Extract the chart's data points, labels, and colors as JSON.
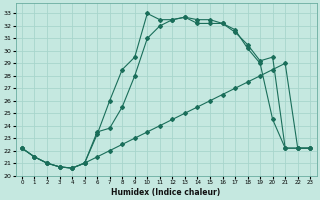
{
  "title": "",
  "xlabel": "Humidex (Indice chaleur)",
  "bg_color": "#c5e8e0",
  "grid_color": "#a8d5cc",
  "line_color": "#1a6e5a",
  "xlim": [
    -0.5,
    23.5
  ],
  "ylim": [
    20.0,
    33.8
  ],
  "xticks": [
    0,
    1,
    2,
    3,
    4,
    5,
    6,
    7,
    8,
    9,
    10,
    11,
    12,
    13,
    14,
    15,
    16,
    17,
    18,
    19,
    20,
    21,
    22,
    23
  ],
  "yticks": [
    20,
    21,
    22,
    23,
    24,
    25,
    26,
    27,
    28,
    29,
    30,
    31,
    32,
    33
  ],
  "line1_x": [
    0,
    1,
    2,
    3,
    4,
    5,
    6,
    7,
    8,
    9,
    10,
    11,
    12,
    13,
    14,
    15,
    16,
    17,
    18,
    19,
    20,
    21,
    22,
    23
  ],
  "line1_y": [
    22.2,
    21.5,
    21.0,
    20.7,
    20.6,
    21.0,
    21.5,
    22.0,
    22.5,
    23.0,
    23.5,
    24.0,
    24.5,
    25.0,
    25.5,
    26.0,
    26.5,
    27.0,
    27.5,
    28.0,
    28.5,
    29.0,
    22.2,
    22.2
  ],
  "line2_x": [
    0,
    1,
    2,
    3,
    4,
    5,
    6,
    7,
    8,
    9,
    10,
    11,
    12,
    13,
    14,
    15,
    16,
    17,
    18,
    19,
    20,
    21,
    22,
    23
  ],
  "line2_y": [
    22.2,
    21.5,
    21.0,
    20.7,
    20.6,
    21.0,
    23.3,
    26.0,
    28.5,
    29.5,
    33.0,
    32.5,
    32.5,
    32.7,
    32.2,
    32.2,
    32.2,
    31.7,
    30.2,
    29.0,
    24.5,
    22.2,
    22.2,
    22.2
  ],
  "line3_x": [
    0,
    1,
    2,
    3,
    4,
    5,
    6,
    7,
    8,
    9,
    10,
    11,
    12,
    13,
    14,
    15,
    16,
    17,
    18,
    19,
    20,
    21,
    22,
    23
  ],
  "line3_y": [
    22.2,
    21.5,
    21.0,
    20.7,
    20.6,
    21.0,
    23.5,
    23.8,
    25.5,
    28.0,
    31.0,
    32.0,
    32.5,
    32.7,
    32.5,
    32.5,
    32.2,
    31.5,
    30.5,
    29.2,
    29.5,
    22.2,
    22.2,
    22.2
  ]
}
